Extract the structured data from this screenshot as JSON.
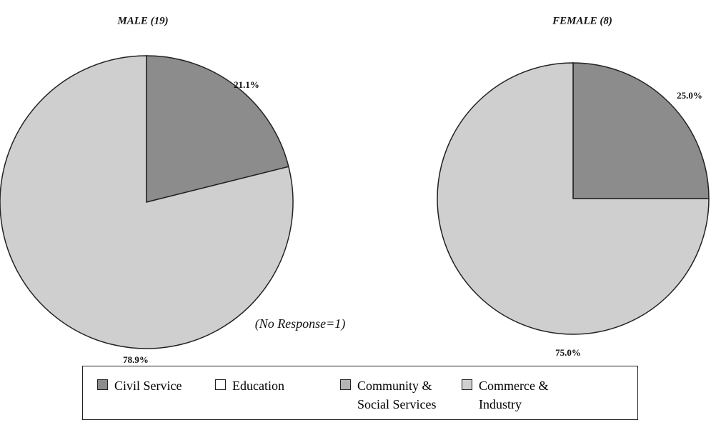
{
  "chart_data": [
    {
      "type": "pie",
      "title": "MALE (19)",
      "categories": [
        "Civil Service",
        "Education",
        "Community & Social Services",
        "Commerce & Industry"
      ],
      "values": [
        21.1,
        0,
        0,
        78.9
      ],
      "value_labels": [
        "21.1%",
        null,
        null,
        "78.9%"
      ],
      "colors": [
        "#8c8c8c",
        "#ffffff",
        "#b4b4b4",
        "#cfcfcf"
      ],
      "annotation": "(No Response=1)"
    },
    {
      "type": "pie",
      "title": "FEMALE (8)",
      "categories": [
        "Civil Service",
        "Education",
        "Community & Social Services",
        "Commerce & Industry"
      ],
      "values": [
        25.0,
        0,
        0,
        75.0
      ],
      "value_labels": [
        "25.0%",
        null,
        null,
        "75.0%"
      ],
      "colors": [
        "#8c8c8c",
        "#ffffff",
        "#b4b4b4",
        "#cfcfcf"
      ]
    }
  ]
}
